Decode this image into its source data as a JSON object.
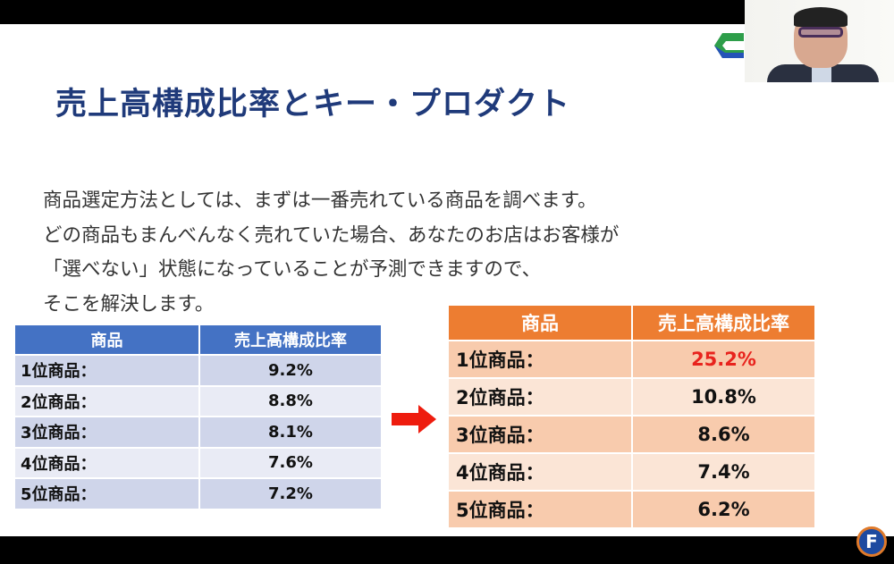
{
  "slide": {
    "title": "売上高構成比率とキー・プロダクト",
    "body": [
      "商品選定方法としては、まずは一番売れている商品を調べます。",
      "どの商品もまんべんなく売れていた場合、あなたのお店はお客様が",
      "「選べない」状態になっていることが予測できますので、",
      "そこを解決します。"
    ],
    "before_table": {
      "headers": [
        "商品",
        "売上高構成比率"
      ],
      "rows": [
        [
          "1位商品：",
          "9.2%"
        ],
        [
          "2位商品：",
          "8.8%"
        ],
        [
          "3位商品：",
          "8.1%"
        ],
        [
          "4位商品：",
          "7.6%"
        ],
        [
          "5位商品：",
          "7.2%"
        ]
      ]
    },
    "after_table": {
      "headers": [
        "商品",
        "売上高構成比率"
      ],
      "rows": [
        [
          "1位商品：",
          "25.2%"
        ],
        [
          "2位商品：",
          "10.8%"
        ],
        [
          "3位商品：",
          "8.6%"
        ],
        [
          "4位商品：",
          "7.4%"
        ],
        [
          "5位商品：",
          "6.2%"
        ]
      ]
    },
    "highlight_color": "#e8231d"
  },
  "overlay": {
    "badge_letter": "F"
  }
}
